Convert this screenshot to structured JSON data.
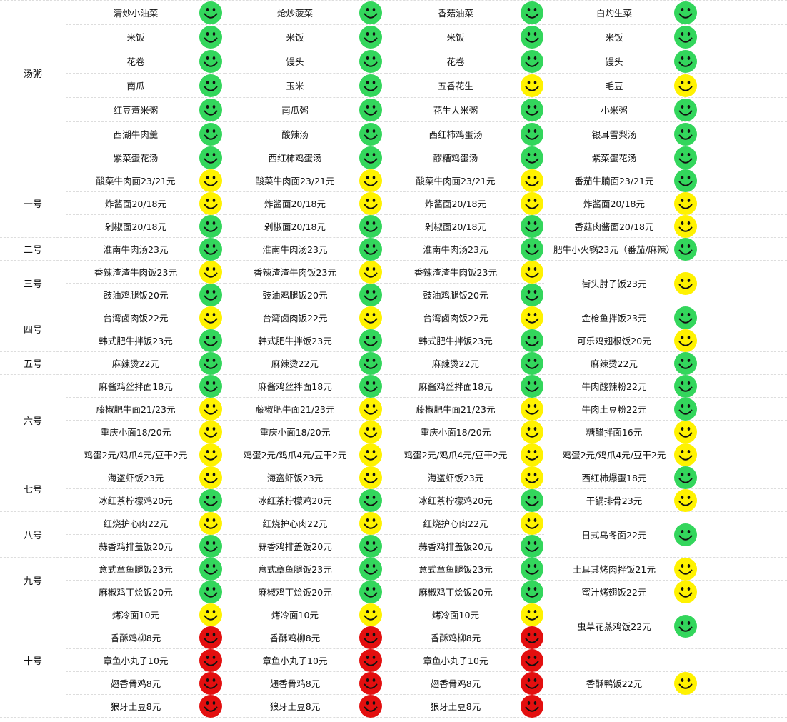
{
  "colors": {
    "green": "#33d65c",
    "yellow": "#fff200",
    "red": "#e30f0f"
  },
  "icon": "smiley-face-icon",
  "categories": [
    {
      "label": "汤粥",
      "rows": 6
    },
    {
      "label": "",
      "rows": 1
    },
    {
      "label": "一号",
      "rows": 3
    },
    {
      "label": "二号",
      "rows": 1
    },
    {
      "label": "三号",
      "rows": 2
    },
    {
      "label": "四号",
      "rows": 2
    },
    {
      "label": "五号",
      "rows": 1
    },
    {
      "label": "六号",
      "rows": 4
    },
    {
      "label": "七号",
      "rows": 2
    },
    {
      "label": "八号",
      "rows": 2
    },
    {
      "label": "九号",
      "rows": 2
    },
    {
      "label": "十号",
      "rows": 5
    }
  ],
  "columns": [
    [
      {
        "name": "清炒小油菜",
        "rating": "green"
      },
      {
        "name": "米饭",
        "rating": "green"
      },
      {
        "name": "花卷",
        "rating": "green"
      },
      {
        "name": "南瓜",
        "rating": "green"
      },
      {
        "name": "红豆薏米粥",
        "rating": "green"
      },
      {
        "name": "西湖牛肉羹",
        "rating": "green"
      },
      {
        "name": "紫菜蛋花汤",
        "rating": "green"
      },
      {
        "name": "酸菜牛肉面23/21元",
        "rating": "yellow"
      },
      {
        "name": "炸酱面20/18元",
        "rating": "yellow"
      },
      {
        "name": "剁椒面20/18元",
        "rating": "green"
      },
      {
        "name": "淮南牛肉汤23元",
        "rating": "green"
      },
      {
        "name": "香辣渣渣牛肉饭23元",
        "rating": "yellow"
      },
      {
        "name": "豉油鸡腿饭20元",
        "rating": "green"
      },
      {
        "name": "台湾卤肉饭22元",
        "rating": "yellow"
      },
      {
        "name": "韩式肥牛拌饭23元",
        "rating": "green"
      },
      {
        "name": "麻辣烫22元",
        "rating": "green"
      },
      {
        "name": "麻酱鸡丝拌面18元",
        "rating": "green"
      },
      {
        "name": "藤椒肥牛面21/23元",
        "rating": "yellow"
      },
      {
        "name": "重庆小面18/20元",
        "rating": "yellow"
      },
      {
        "name": "鸡蛋2元/鸡爪4元/豆干2元",
        "rating": "yellow"
      },
      {
        "name": "海盗虾饭23元",
        "rating": "yellow"
      },
      {
        "name": "冰红茶柠檬鸡20元",
        "rating": "green"
      },
      {
        "name": "红烧护心肉22元",
        "rating": "yellow"
      },
      {
        "name": "蒜香鸡排盖饭20元",
        "rating": "green"
      },
      {
        "name": "意式章鱼腿饭23元",
        "rating": "green"
      },
      {
        "name": "麻椒鸡丁烩饭20元",
        "rating": "green"
      },
      {
        "name": "烤冷面10元",
        "rating": "yellow"
      },
      {
        "name": "香酥鸡柳8元",
        "rating": "red"
      },
      {
        "name": "章鱼小丸子10元",
        "rating": "red"
      },
      {
        "name": "翅香骨鸡8元",
        "rating": "red"
      },
      {
        "name": "狼牙土豆8元",
        "rating": "red"
      }
    ],
    [
      {
        "name": "炝炒菠菜",
        "rating": "green"
      },
      {
        "name": "米饭",
        "rating": "green"
      },
      {
        "name": "馒头",
        "rating": "green"
      },
      {
        "name": "玉米",
        "rating": "green"
      },
      {
        "name": "南瓜粥",
        "rating": "green"
      },
      {
        "name": "酸辣汤",
        "rating": "green"
      },
      {
        "name": "西红柿鸡蛋汤",
        "rating": "green"
      },
      {
        "name": "酸菜牛肉面23/21元",
        "rating": "yellow"
      },
      {
        "name": "炸酱面20/18元",
        "rating": "yellow"
      },
      {
        "name": "剁椒面20/18元",
        "rating": "green"
      },
      {
        "name": "淮南牛肉汤23元",
        "rating": "green"
      },
      {
        "name": "香辣渣渣牛肉饭23元",
        "rating": "yellow"
      },
      {
        "name": "豉油鸡腿饭20元",
        "rating": "green"
      },
      {
        "name": "台湾卤肉饭22元",
        "rating": "yellow"
      },
      {
        "name": "韩式肥牛拌饭23元",
        "rating": "green"
      },
      {
        "name": "麻辣烫22元",
        "rating": "green"
      },
      {
        "name": "麻酱鸡丝拌面18元",
        "rating": "green"
      },
      {
        "name": "藤椒肥牛面21/23元",
        "rating": "yellow"
      },
      {
        "name": "重庆小面18/20元",
        "rating": "yellow"
      },
      {
        "name": "鸡蛋2元/鸡爪4元/豆干2元",
        "rating": "yellow"
      },
      {
        "name": "海盗虾饭23元",
        "rating": "yellow"
      },
      {
        "name": "冰红茶柠檬鸡20元",
        "rating": "green"
      },
      {
        "name": "红烧护心肉22元",
        "rating": "yellow"
      },
      {
        "name": "蒜香鸡排盖饭20元",
        "rating": "green"
      },
      {
        "name": "意式章鱼腿饭23元",
        "rating": "green"
      },
      {
        "name": "麻椒鸡丁烩饭20元",
        "rating": "green"
      },
      {
        "name": "烤冷面10元",
        "rating": "yellow"
      },
      {
        "name": "香酥鸡柳8元",
        "rating": "red"
      },
      {
        "name": "章鱼小丸子10元",
        "rating": "red"
      },
      {
        "name": "翅香骨鸡8元",
        "rating": "red"
      },
      {
        "name": "狼牙土豆8元",
        "rating": "red"
      }
    ],
    [
      {
        "name": "香菇油菜",
        "rating": "green"
      },
      {
        "name": "米饭",
        "rating": "green"
      },
      {
        "name": "花卷",
        "rating": "green"
      },
      {
        "name": "五香花生",
        "rating": "yellow"
      },
      {
        "name": "花生大米粥",
        "rating": "green"
      },
      {
        "name": "西红柿鸡蛋汤",
        "rating": "green"
      },
      {
        "name": "醪糟鸡蛋汤",
        "rating": "green"
      },
      {
        "name": "酸菜牛肉面23/21元",
        "rating": "yellow"
      },
      {
        "name": "炸酱面20/18元",
        "rating": "yellow"
      },
      {
        "name": "剁椒面20/18元",
        "rating": "green"
      },
      {
        "name": "淮南牛肉汤23元",
        "rating": "green"
      },
      {
        "name": "香辣渣渣牛肉饭23元",
        "rating": "yellow"
      },
      {
        "name": "豉油鸡腿饭20元",
        "rating": "green"
      },
      {
        "name": "台湾卤肉饭22元",
        "rating": "yellow"
      },
      {
        "name": "韩式肥牛拌饭23元",
        "rating": "green"
      },
      {
        "name": "麻辣烫22元",
        "rating": "green"
      },
      {
        "name": "麻酱鸡丝拌面18元",
        "rating": "green"
      },
      {
        "name": "藤椒肥牛面21/23元",
        "rating": "yellow"
      },
      {
        "name": "重庆小面18/20元",
        "rating": "yellow"
      },
      {
        "name": "鸡蛋2元/鸡爪4元/豆干2元",
        "rating": "yellow"
      },
      {
        "name": "海盗虾饭23元",
        "rating": "yellow"
      },
      {
        "name": "冰红茶柠檬鸡20元",
        "rating": "green"
      },
      {
        "name": "红烧护心肉22元",
        "rating": "yellow"
      },
      {
        "name": "蒜香鸡排盖饭20元",
        "rating": "green"
      },
      {
        "name": "意式章鱼腿饭23元",
        "rating": "green"
      },
      {
        "name": "麻椒鸡丁烩饭20元",
        "rating": "green"
      },
      {
        "name": "烤冷面10元",
        "rating": "yellow"
      },
      {
        "name": "香酥鸡柳8元",
        "rating": "red"
      },
      {
        "name": "章鱼小丸子10元",
        "rating": "red"
      },
      {
        "name": "翅香骨鸡8元",
        "rating": "red"
      },
      {
        "name": "狼牙土豆8元",
        "rating": "red"
      }
    ],
    [
      {
        "name": "白灼生菜",
        "rating": "green"
      },
      {
        "name": "米饭",
        "rating": "green"
      },
      {
        "name": "馒头",
        "rating": "green"
      },
      {
        "name": "毛豆",
        "rating": "yellow"
      },
      {
        "name": "小米粥",
        "rating": "green"
      },
      {
        "name": "银耳雪梨汤",
        "rating": "green"
      },
      {
        "name": "紫菜蛋花汤",
        "rating": "green"
      },
      {
        "name": "番茄牛腩面23/21元",
        "rating": "green"
      },
      {
        "name": "炸酱面20/18元",
        "rating": "yellow"
      },
      {
        "name": "香菇肉酱面20/18元",
        "rating": "yellow"
      },
      {
        "name": "肥牛小火锅23元（番茄/麻辣）",
        "rating": "green"
      },
      {
        "name": "街头肘子饭23元",
        "rating": "yellow",
        "span": 2
      },
      {
        "name": "金枪鱼拌饭23元",
        "rating": "green"
      },
      {
        "name": "可乐鸡翅根饭20元",
        "rating": "yellow"
      },
      {
        "name": "麻辣烫22元",
        "rating": "green"
      },
      {
        "name": "牛肉酸辣粉22元",
        "rating": "green"
      },
      {
        "name": "牛肉土豆粉22元",
        "rating": "green"
      },
      {
        "name": "糖醋拌面16元",
        "rating": "yellow"
      },
      {
        "name": "鸡蛋2元/鸡爪4元/豆干2元",
        "rating": "yellow"
      },
      {
        "name": "西红柿爆蛋18元",
        "rating": "green"
      },
      {
        "name": "干锅排骨23元",
        "rating": "yellow"
      },
      {
        "name": "日式乌冬面22元",
        "rating": "green",
        "span": 2
      },
      {
        "name": "土耳其烤肉拌饭21元",
        "rating": "yellow"
      },
      {
        "name": "蜜汁烤翅饭22元",
        "rating": "yellow"
      },
      {
        "name": "虫草花蒸鸡饭22元",
        "rating": "green",
        "span": 2
      },
      {
        "name": "",
        "rating": ""
      },
      {
        "name": "香酥鸭饭22元",
        "rating": "yellow"
      },
      {
        "name": "",
        "rating": ""
      }
    ]
  ]
}
